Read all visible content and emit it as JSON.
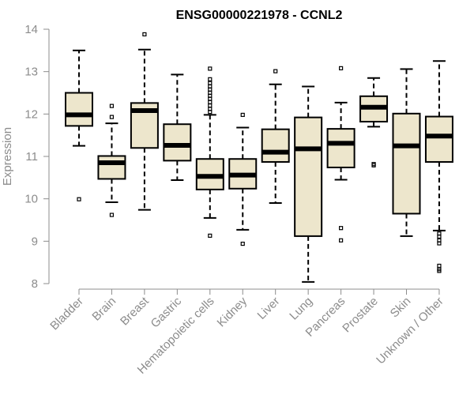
{
  "chart_data": {
    "type": "boxplot",
    "title": "ENSG00000221978 - CCNL2",
    "xlabel": "",
    "ylabel": "Expression",
    "ylim": [
      8,
      14
    ],
    "yticks": [
      8,
      9,
      10,
      11,
      12,
      13,
      14
    ],
    "box_color": "#ede6cc",
    "axis_color": "#8c8c8c",
    "categories": [
      "Bladder",
      "Brain",
      "Breast",
      "Gastric",
      "Hematopoietic cells",
      "Kidney",
      "Liver",
      "Lung",
      "Pancreas",
      "Prostate",
      "Skin",
      "Unknown / Other"
    ],
    "series": [
      {
        "name": "Bladder",
        "whisker_low": 11.25,
        "q1": 11.72,
        "median": 11.98,
        "q3": 12.5,
        "whisker_high": 13.5,
        "outliers": [
          9.99
        ]
      },
      {
        "name": "Brain",
        "whisker_low": 9.92,
        "q1": 10.47,
        "median": 10.85,
        "q3": 11.01,
        "whisker_high": 11.78,
        "outliers": [
          12.19,
          11.93,
          9.62
        ]
      },
      {
        "name": "Breast",
        "whisker_low": 9.74,
        "q1": 11.2,
        "median": 12.08,
        "q3": 12.26,
        "whisker_high": 13.52,
        "outliers": [
          13.88
        ]
      },
      {
        "name": "Gastric",
        "whisker_low": 10.44,
        "q1": 10.9,
        "median": 11.26,
        "q3": 11.76,
        "whisker_high": 12.93,
        "outliers": []
      },
      {
        "name": "Hematopoietic cells",
        "whisker_low": 9.55,
        "q1": 10.22,
        "median": 10.53,
        "q3": 10.94,
        "whisker_high": 11.98,
        "outliers": [
          13.07,
          12.82,
          12.73,
          12.65,
          12.58,
          12.5,
          12.43,
          12.36,
          12.28,
          12.2,
          12.12,
          12.05,
          9.13
        ]
      },
      {
        "name": "Kidney",
        "whisker_low": 9.27,
        "q1": 10.24,
        "median": 10.56,
        "q3": 10.94,
        "whisker_high": 11.68,
        "outliers": [
          11.98,
          8.94
        ]
      },
      {
        "name": "Liver",
        "whisker_low": 9.9,
        "q1": 10.87,
        "median": 11.1,
        "q3": 11.64,
        "whisker_high": 12.7,
        "outliers": [
          13.01
        ]
      },
      {
        "name": "Lung",
        "whisker_low": 8.04,
        "q1": 9.12,
        "median": 11.18,
        "q3": 11.92,
        "whisker_high": 12.65,
        "outliers": []
      },
      {
        "name": "Pancreas",
        "whisker_low": 10.45,
        "q1": 10.74,
        "median": 11.31,
        "q3": 11.65,
        "whisker_high": 12.27,
        "outliers": [
          13.08,
          9.31,
          9.02
        ]
      },
      {
        "name": "Prostate",
        "whisker_low": 11.7,
        "q1": 11.82,
        "median": 12.16,
        "q3": 12.42,
        "whisker_high": 12.85,
        "outliers": [
          10.82,
          10.79
        ]
      },
      {
        "name": "Skin",
        "whisker_low": 9.12,
        "q1": 9.65,
        "median": 11.25,
        "q3": 12.01,
        "whisker_high": 13.06,
        "outliers": []
      },
      {
        "name": "Unknown / Other",
        "whisker_low": 9.25,
        "q1": 10.87,
        "median": 11.48,
        "q3": 11.94,
        "whisker_high": 13.25,
        "outliers": [
          9.18,
          9.11,
          9.02,
          8.95,
          8.42,
          8.34,
          8.3
        ]
      }
    ]
  }
}
